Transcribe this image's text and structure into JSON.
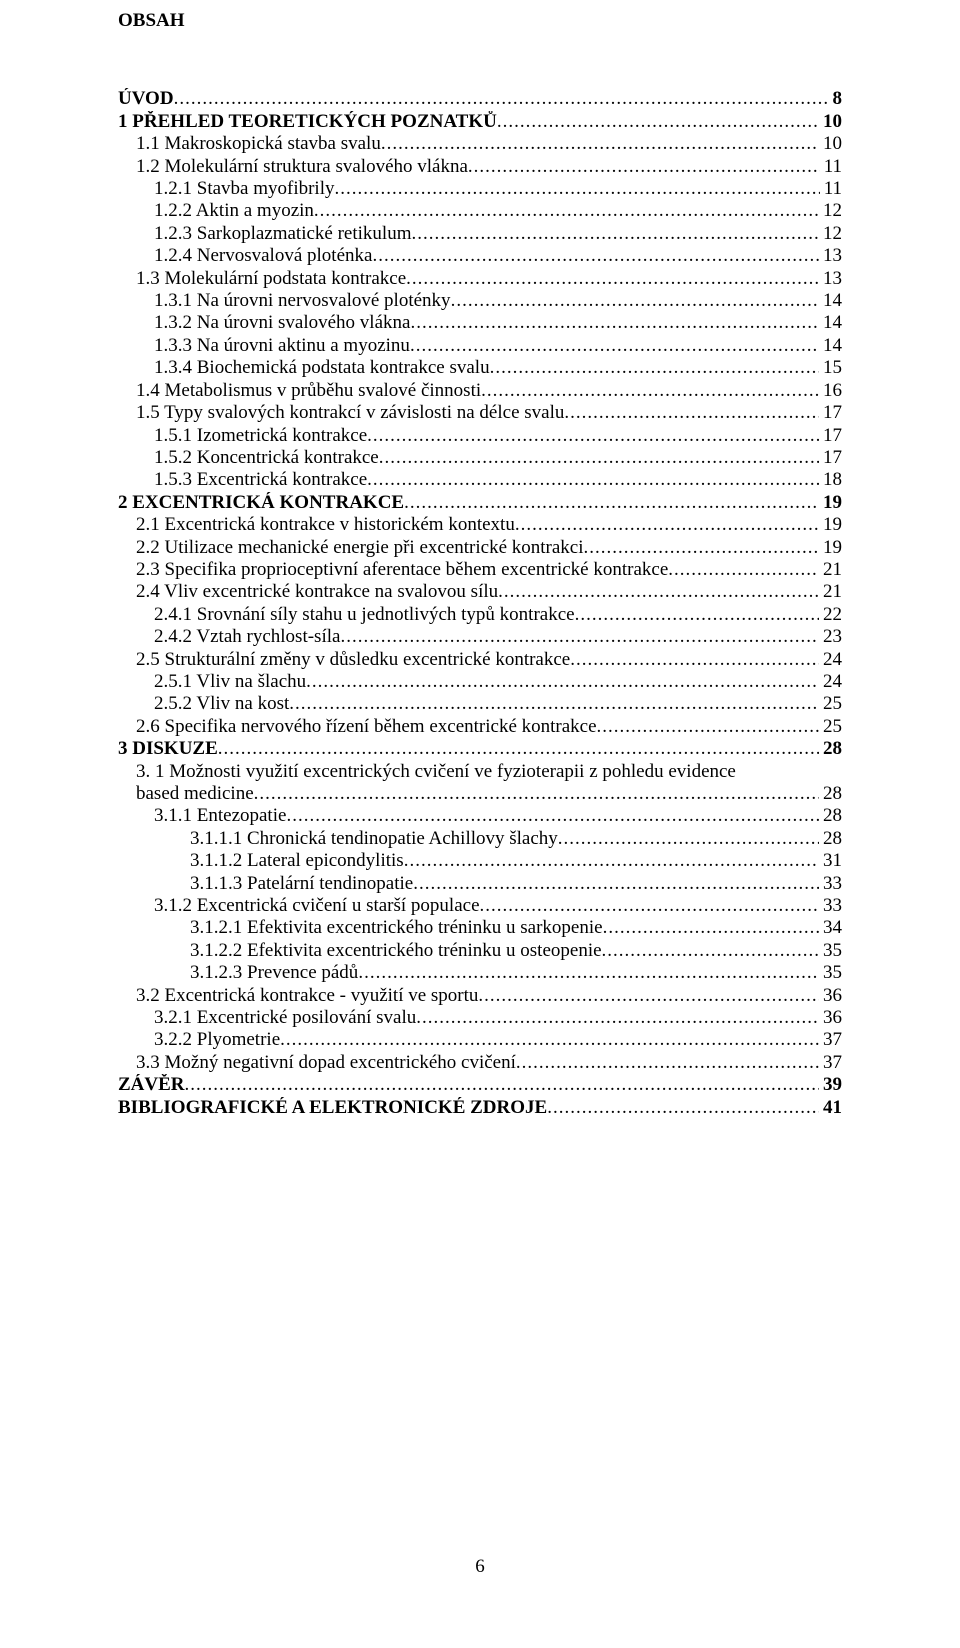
{
  "headingText": "OBSAH",
  "pageNumber": "6",
  "entries": [
    {
      "label": "ÚVOD",
      "page": "8",
      "level": 0,
      "bold": true
    },
    {
      "label": "1 PŘEHLED TEORETICKÝCH POZNATKŮ",
      "page": "10",
      "level": 0,
      "bold": true
    },
    {
      "label": "1.1 Makroskopická stavba svalu",
      "page": "10",
      "level": 1,
      "bold": false
    },
    {
      "label": "1.2 Molekulární struktura svalového vlákna",
      "page": "11",
      "level": 1,
      "bold": false
    },
    {
      "label": "1.2.1 Stavba myofibrily",
      "page": "11",
      "level": 2,
      "bold": false
    },
    {
      "label": "1.2.2 Aktin a myozin",
      "page": "12",
      "level": 2,
      "bold": false
    },
    {
      "label": "1.2.3 Sarkoplazmatické retikulum",
      "page": "12",
      "level": 2,
      "bold": false
    },
    {
      "label": "1.2.4 Nervosvalová ploténka",
      "page": "13",
      "level": 2,
      "bold": false
    },
    {
      "label": "1.3 Molekulární podstata kontrakce",
      "page": "13",
      "level": 1,
      "bold": false
    },
    {
      "label": "1.3.1 Na úrovni nervosvalové ploténky",
      "page": "14",
      "level": 2,
      "bold": false
    },
    {
      "label": "1.3.2 Na úrovni svalového vlákna",
      "page": "14",
      "level": 2,
      "bold": false
    },
    {
      "label": "1.3.3 Na úrovni aktinu a myozinu",
      "page": "14",
      "level": 2,
      "bold": false
    },
    {
      "label": "1.3.4 Biochemická podstata kontrakce svalu",
      "page": "15",
      "level": 2,
      "bold": false
    },
    {
      "label": "1.4 Metabolismus v průběhu svalové činnosti",
      "page": "16",
      "level": 1,
      "bold": false
    },
    {
      "label": "1.5 Typy svalových kontrakcí v závislosti na délce svalu",
      "page": "17",
      "level": 1,
      "bold": false
    },
    {
      "label": "1.5.1 Izometrická kontrakce",
      "page": "17",
      "level": 2,
      "bold": false
    },
    {
      "label": "1.5.2 Koncentrická kontrakce",
      "page": "17",
      "level": 2,
      "bold": false
    },
    {
      "label": "1.5.3 Excentrická kontrakce",
      "page": "18",
      "level": 2,
      "bold": false
    },
    {
      "label": "2 EXCENTRICKÁ KONTRAKCE",
      "page": "19",
      "level": 0,
      "bold": true
    },
    {
      "label": "2.1 Excentrická kontrakce v historickém kontextu",
      "page": "19",
      "level": 1,
      "bold": false
    },
    {
      "label": "2.2 Utilizace mechanické energie při excentrické kontrakci",
      "page": "19",
      "level": 1,
      "bold": false
    },
    {
      "label": "2.3 Specifika proprioceptivní aferentace během excentrické kontrakce",
      "page": "21",
      "level": 1,
      "bold": false
    },
    {
      "label": "2.4 Vliv excentrické kontrakce na svalovou sílu",
      "page": "21",
      "level": 1,
      "bold": false
    },
    {
      "label": "2.4.1 Srovnání síly stahu u jednotlivých typů kontrakce",
      "page": "22",
      "level": 2,
      "bold": false
    },
    {
      "label": "2.4.2 Vztah rychlost-síla",
      "page": "23",
      "level": 2,
      "bold": false
    },
    {
      "label": "2.5 Strukturální změny v důsledku excentrické kontrakce",
      "page": "24",
      "level": 1,
      "bold": false
    },
    {
      "label": "2.5.1 Vliv na šlachu",
      "page": "24",
      "level": 2,
      "bold": false
    },
    {
      "label": "2.5.2 Vliv na kost",
      "page": "25",
      "level": 2,
      "bold": false
    },
    {
      "label": "2.6 Specifika nervového řízení během excentrické kontrakce",
      "page": "25",
      "level": 1,
      "bold": false
    },
    {
      "label": "3 DISKUZE",
      "page": "28",
      "level": 0,
      "bold": true
    },
    {
      "label": "3. 1 Možnosti využití excentrických cvičení ve fyzioterapii z pohledu evidence based medicine",
      "page": "28",
      "level": 1,
      "bold": false,
      "wrap": true
    },
    {
      "label": "3.1.1 Entezopatie",
      "page": "28",
      "level": 2,
      "bold": false
    },
    {
      "label": "3.1.1.1 Chronická tendinopatie Achillovy šlachy",
      "page": "28",
      "level": 3,
      "bold": false
    },
    {
      "label": "3.1.1.2 Lateral epicondylitis",
      "page": "31",
      "level": 3,
      "bold": false
    },
    {
      "label": "3.1.1.3 Patelární tendinopatie",
      "page": "33",
      "level": 3,
      "bold": false
    },
    {
      "label": "3.1.2 Excentrická cvičení u starší populace",
      "page": "33",
      "level": 2,
      "bold": false
    },
    {
      "label": "3.1.2.1 Efektivita excentrického tréninku u sarkopenie",
      "page": "34",
      "level": 3,
      "bold": false
    },
    {
      "label": "3.1.2.2 Efektivita excentrického tréninku u osteopenie",
      "page": "35",
      "level": 3,
      "bold": false
    },
    {
      "label": "3.1.2.3 Prevence pádů",
      "page": "35",
      "level": 3,
      "bold": false
    },
    {
      "label": "3.2 Excentrická kontrakce - využití ve sportu",
      "page": "36",
      "level": 1,
      "bold": false
    },
    {
      "label": "3.2.1 Excentrické posilování svalu",
      "page": "36",
      "level": 2,
      "bold": false
    },
    {
      "label": "3.2.2 Plyometrie",
      "page": "37",
      "level": 2,
      "bold": false
    },
    {
      "label": "3.3 Možný negativní dopad excentrického cvičení",
      "page": "37",
      "level": 1,
      "bold": false
    },
    {
      "label": "ZÁVĚR",
      "page": "39",
      "level": 0,
      "bold": true
    },
    {
      "label": "BIBLIOGRAFICKÉ A ELEKTRONICKÉ ZDROJE",
      "page": "41",
      "level": 0,
      "bold": true
    }
  ],
  "wrapEntrySplit": {
    "line1": "3. 1 Možnosti využití excentrických cvičení ve fyzioterapii z pohledu evidence",
    "line2": "based medicine"
  }
}
